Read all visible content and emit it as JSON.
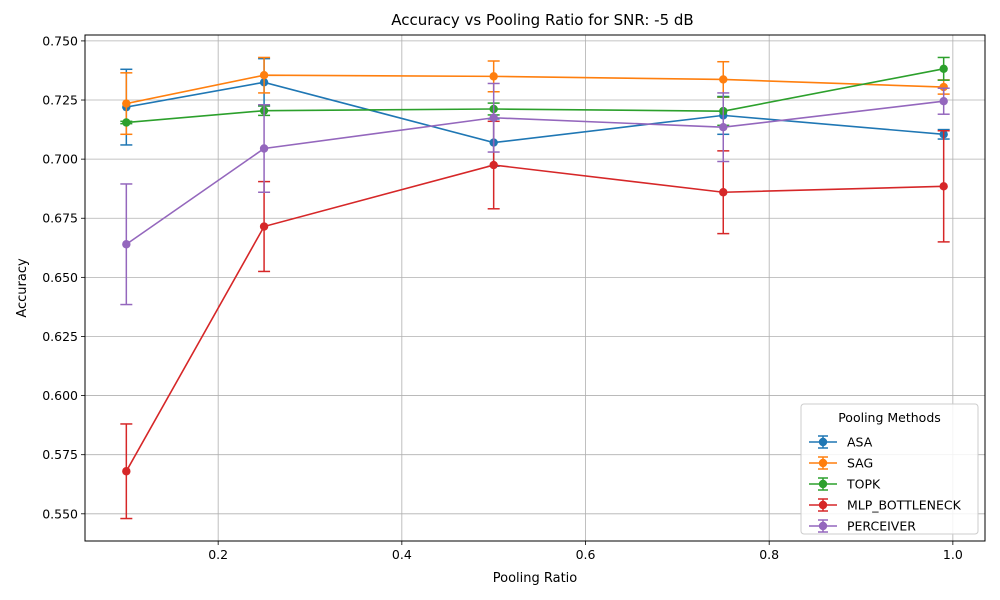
{
  "chart_data": {
    "type": "line",
    "title": "Accuracy vs Pooling Ratio for SNR: -5 dB",
    "xlabel": "Pooling Ratio",
    "ylabel": "Accuracy",
    "xlim": [
      0.055,
      1.035
    ],
    "ylim": [
      0.5385,
      0.7525
    ],
    "xticks": [
      0.2,
      0.4,
      0.6,
      0.8,
      1.0
    ],
    "xtick_labels": [
      "0.2",
      "0.4",
      "0.6",
      "0.8",
      "1.0"
    ],
    "yticks": [
      0.55,
      0.575,
      0.6,
      0.625,
      0.65,
      0.675,
      0.7,
      0.725,
      0.75
    ],
    "ytick_labels": [
      "0.550",
      "0.575",
      "0.600",
      "0.625",
      "0.650",
      "0.675",
      "0.700",
      "0.725",
      "0.750"
    ],
    "grid": true,
    "legend": {
      "title": "Pooling Methods",
      "position": "lower-right"
    },
    "x": [
      0.1,
      0.25,
      0.5,
      0.75,
      0.99
    ],
    "series": [
      {
        "name": "ASA",
        "color": "#1f77b4",
        "values": [
          0.722,
          0.7325,
          0.707,
          0.7185,
          0.7105
        ],
        "errors": [
          0.016,
          0.01,
          0.01,
          0.008,
          0.002
        ]
      },
      {
        "name": "SAG",
        "color": "#ff7f0e",
        "values": [
          0.7235,
          0.7355,
          0.735,
          0.7337,
          0.7305
        ],
        "errors": [
          0.013,
          0.0075,
          0.0065,
          0.0075,
          0.003
        ]
      },
      {
        "name": "TOPK",
        "color": "#2ca02c",
        "values": [
          0.7155,
          0.7205,
          0.7212,
          0.7203,
          0.7382
        ],
        "errors": [
          0.0005,
          0.002,
          0.0025,
          0.006,
          0.0048
        ]
      },
      {
        "name": "MLP_BOTTLENECK",
        "color": "#d62728",
        "values": [
          0.568,
          0.6715,
          0.6975,
          0.686,
          0.6885
        ],
        "errors": [
          0.02,
          0.019,
          0.0185,
          0.0175,
          0.0235
        ]
      },
      {
        "name": "PERCEIVER",
        "color": "#9467bd",
        "values": [
          0.664,
          0.7045,
          0.7175,
          0.7135,
          0.7245
        ],
        "errors": [
          0.0255,
          0.0185,
          0.0145,
          0.0145,
          0.0055
        ]
      }
    ]
  }
}
